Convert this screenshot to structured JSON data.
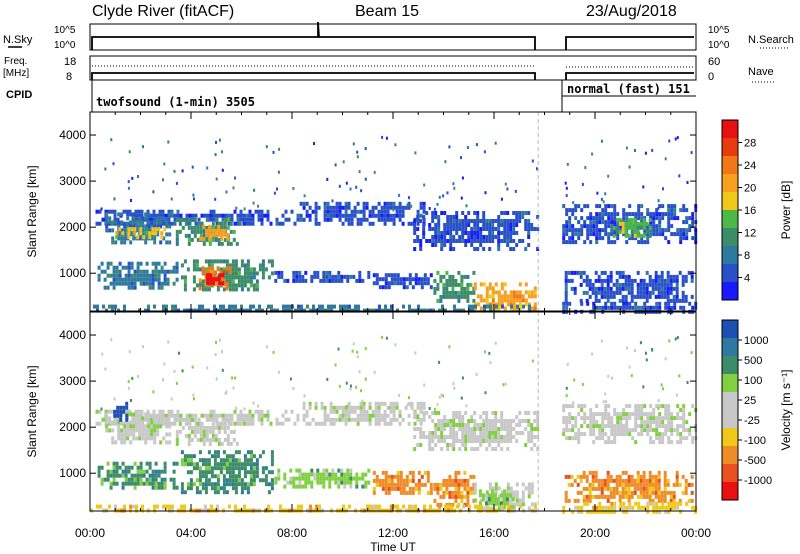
{
  "header": {
    "radar": "Clyde River (fitACF)",
    "beam": "Beam 15",
    "date": "23/Aug/2018"
  },
  "strip_labels": {
    "nsky": "N.Sky",
    "nsearch": "N.Search",
    "freq": "Freq.",
    "freq_unit": "[MHz]",
    "nave": "Nave",
    "cpid": "CPID",
    "noise_ticks": [
      "10^5",
      "10^0"
    ],
    "freq_ticks": [
      "18",
      "8"
    ],
    "nave_ticks": [
      "60",
      "0"
    ]
  },
  "cpid_segments": [
    {
      "label": "twofsound (1-min) 3505",
      "start_hour": 0,
      "end_hour": 17.75
    },
    {
      "label": "normal (fast) 151",
      "start_hour": 18.7,
      "end_hour": 24
    }
  ],
  "colors": {
    "power_scale": [
      "#1a1aff",
      "#2850c8",
      "#2e7a9e",
      "#3c8c6a",
      "#4cb848",
      "#f0c81a",
      "#f5a020",
      "#f07818",
      "#e83c10",
      "#e81010"
    ],
    "velocity_scale": [
      "#1e50b4",
      "#2e7a9e",
      "#3c8c6a",
      "#80d040",
      "#c8c8c8",
      "#c8c8c8",
      "#f0c81a",
      "#f08c28",
      "#e85020",
      "#e81010"
    ]
  },
  "chart_data": [
    {
      "type": "heatmap",
      "name": "power",
      "xlabel": "Time UT",
      "ylabel": "Slant Range [km]",
      "x_range_hours": [
        0,
        24
      ],
      "x_ticks": [
        "00:00",
        "04:00",
        "08:00",
        "12:00",
        "16:00",
        "20:00",
        "00:00"
      ],
      "y_range": [
        180,
        4500
      ],
      "y_ticks": [
        1000,
        2000,
        3000,
        4000
      ],
      "colorbar_label": "Power [dB]",
      "colorbar_ticks": [
        "4",
        "8",
        "12",
        "16",
        "20",
        "24",
        "28"
      ],
      "data_gap_hours": [
        17.75,
        18.7
      ],
      "regions": [
        {
          "t0": 0.1,
          "t1": 8.2,
          "r0": 2080,
          "r1": 2380,
          "level": 1
        },
        {
          "t0": 0.6,
          "t1": 3.2,
          "r0": 1680,
          "r1": 2320,
          "level": 2
        },
        {
          "t0": 3.4,
          "t1": 5.9,
          "r0": 1650,
          "r1": 2200,
          "level": 3
        },
        {
          "t0": 4.2,
          "t1": 5.5,
          "r0": 1750,
          "r1": 2050,
          "level": 6
        },
        {
          "t0": 1.0,
          "t1": 3.0,
          "r0": 1800,
          "r1": 2000,
          "level": 5
        },
        {
          "t0": 8.3,
          "t1": 13.2,
          "r0": 2100,
          "r1": 2550,
          "level": 1
        },
        {
          "t0": 12.8,
          "t1": 17.7,
          "r0": 1550,
          "r1": 2350,
          "level": 1
        },
        {
          "t0": 0.3,
          "t1": 3.5,
          "r0": 650,
          "r1": 1250,
          "level": 2
        },
        {
          "t0": 3.6,
          "t1": 7.2,
          "r0": 620,
          "r1": 1300,
          "level": 3
        },
        {
          "t0": 4.3,
          "t1": 5.6,
          "r0": 700,
          "r1": 1150,
          "level": 7
        },
        {
          "t0": 4.6,
          "t1": 5.2,
          "r0": 750,
          "r1": 1000,
          "level": 9
        },
        {
          "t0": 7.3,
          "t1": 11.0,
          "r0": 800,
          "r1": 1050,
          "level": 1
        },
        {
          "t0": 11.2,
          "t1": 13.5,
          "r0": 700,
          "r1": 1000,
          "level": 1
        },
        {
          "t0": 13.6,
          "t1": 15.2,
          "r0": 400,
          "r1": 1050,
          "level": 3
        },
        {
          "t0": 15.2,
          "t1": 17.6,
          "r0": 250,
          "r1": 800,
          "level": 6
        },
        {
          "t0": 0.0,
          "t1": 17.7,
          "r0": 180,
          "r1": 320,
          "level": 2
        },
        {
          "t0": 18.7,
          "t1": 24.0,
          "r0": 1700,
          "r1": 2500,
          "level": 1
        },
        {
          "t0": 20.7,
          "t1": 22.2,
          "r0": 1850,
          "r1": 2200,
          "level": 4
        },
        {
          "t0": 18.8,
          "t1": 23.8,
          "r0": 400,
          "r1": 1050,
          "level": 1
        },
        {
          "t0": 18.7,
          "t1": 24.0,
          "r0": 180,
          "r1": 380,
          "level": 1
        }
      ]
    },
    {
      "type": "heatmap",
      "name": "velocity",
      "xlabel": "Time UT",
      "ylabel": "Slant Range [km]",
      "x_range_hours": [
        0,
        24
      ],
      "x_ticks": [
        "00:00",
        "04:00",
        "08:00",
        "12:00",
        "16:00",
        "20:00",
        "00:00"
      ],
      "y_range": [
        180,
        4500
      ],
      "y_ticks": [
        1000,
        2000,
        3000,
        4000
      ],
      "colorbar_label": "Velocity [m s⁻¹]",
      "colorbar_ticks": [
        "1000",
        "500",
        "100",
        "25",
        "-25",
        "-100",
        "-500",
        "-1000"
      ],
      "data_gap_hours": [
        17.75,
        18.7
      ],
      "regions": [
        {
          "t0": 0.1,
          "t1": 8.2,
          "r0": 2080,
          "r1": 2380,
          "level": 4
        },
        {
          "t0": 0.6,
          "t1": 3.2,
          "r0": 1680,
          "r1": 2320,
          "level": 4
        },
        {
          "t0": 3.4,
          "t1": 5.9,
          "r0": 1650,
          "r1": 2200,
          "level": 4
        },
        {
          "t0": 0.8,
          "t1": 1.5,
          "r0": 2200,
          "r1": 2550,
          "level": 0
        },
        {
          "t0": 8.3,
          "t1": 13.2,
          "r0": 2100,
          "r1": 2550,
          "level": 4
        },
        {
          "t0": 12.8,
          "t1": 17.7,
          "r0": 1550,
          "r1": 2350,
          "level": 4
        },
        {
          "t0": 0.3,
          "t1": 3.5,
          "r0": 650,
          "r1": 1250,
          "level": 2
        },
        {
          "t0": 3.6,
          "t1": 7.2,
          "r0": 620,
          "r1": 1500,
          "level": 2
        },
        {
          "t0": 7.3,
          "t1": 11.0,
          "r0": 750,
          "r1": 1100,
          "level": 3
        },
        {
          "t0": 11.2,
          "t1": 13.5,
          "r0": 600,
          "r1": 1050,
          "level": 7
        },
        {
          "t0": 13.6,
          "t1": 15.2,
          "r0": 350,
          "r1": 1050,
          "level": 7
        },
        {
          "t0": 15.2,
          "t1": 17.6,
          "r0": 250,
          "r1": 800,
          "level": 4
        },
        {
          "t0": 15.4,
          "t1": 16.8,
          "r0": 300,
          "r1": 650,
          "level": 3
        },
        {
          "t0": 0.0,
          "t1": 17.7,
          "r0": 180,
          "r1": 320,
          "level": 6
        },
        {
          "t0": 18.7,
          "t1": 24.0,
          "r0": 1700,
          "r1": 2500,
          "level": 4
        },
        {
          "t0": 18.8,
          "t1": 23.8,
          "r0": 400,
          "r1": 1050,
          "level": 7
        },
        {
          "t0": 18.7,
          "t1": 24.0,
          "r0": 180,
          "r1": 380,
          "level": 6
        }
      ]
    }
  ]
}
